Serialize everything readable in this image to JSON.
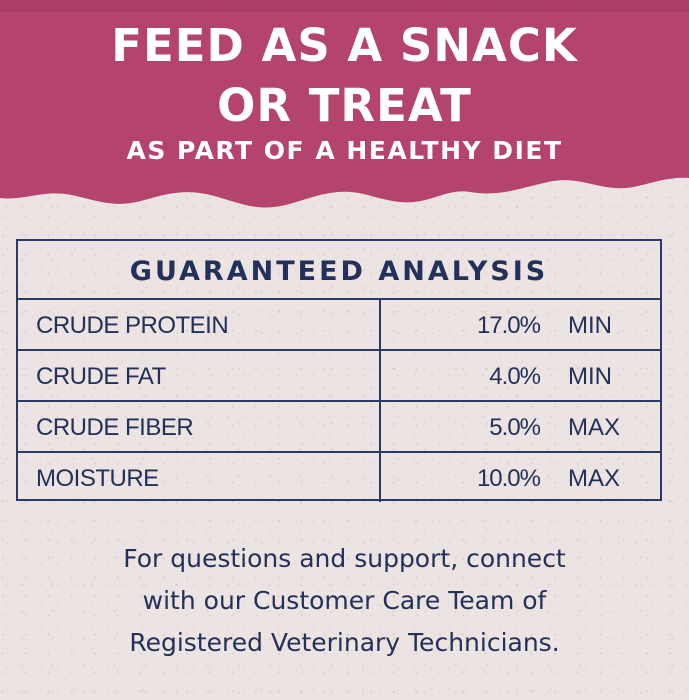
{
  "banner": {
    "line1": "FEED AS A SNACK",
    "line2": "OR TREAT",
    "subline": "AS PART OF A HEALTHY DIET",
    "color": "#b4436e"
  },
  "analysis": {
    "title": "GUARANTEED ANALYSIS",
    "rows": [
      {
        "name": "CRUDE PROTEIN",
        "value": "17.0%",
        "qualifier": "MIN"
      },
      {
        "name": "CRUDE FAT",
        "value": "4.0%",
        "qualifier": "MIN"
      },
      {
        "name": "CRUDE FIBER",
        "value": "5.0%",
        "qualifier": "MAX"
      },
      {
        "name": "MOISTURE",
        "value": "10.0%",
        "qualifier": "MAX"
      }
    ],
    "color": "#22305a"
  },
  "support": {
    "line1": "For questions and support, connect",
    "line2": "with our Customer Care Team of",
    "line3": "Registered Veterinary Technicians."
  },
  "background_color": "#ebe4e2"
}
